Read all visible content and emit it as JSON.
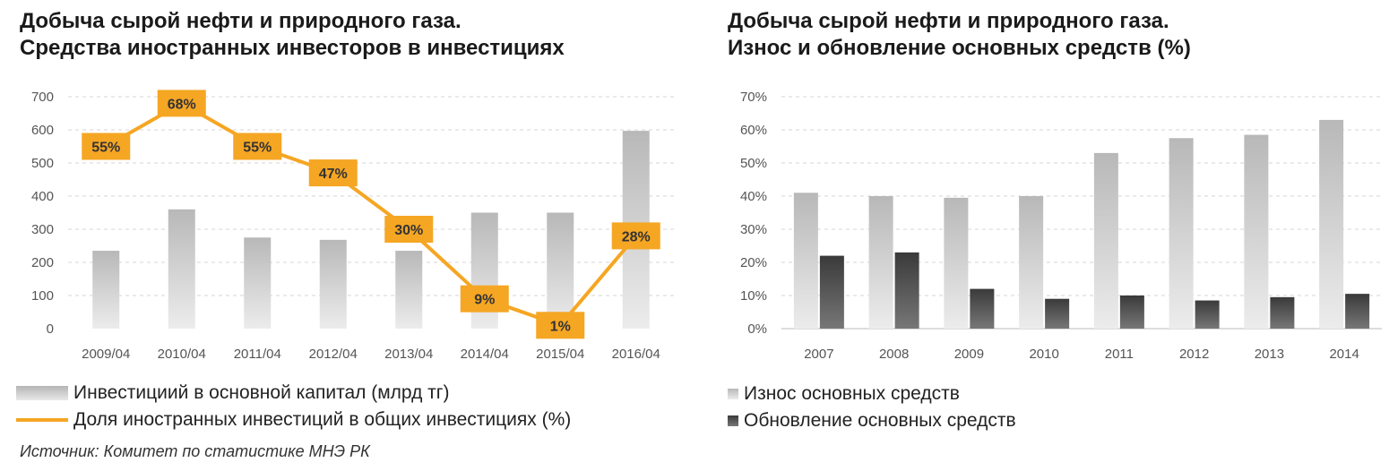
{
  "left_title": [
    "Добыча сырой нефти и природного газа.",
    "Средства иностранных инвесторов в инвестициях"
  ],
  "right_title": [
    "Добыча сырой нефти и природного газа.",
    "Износ и обновление основных средств (%)"
  ],
  "source": "Источник: Комитет по статистике МНЭ РК",
  "colors": {
    "line": "#f5a623",
    "label_box": "#f5a623",
    "bar_light": "#d0d0d0",
    "bar_dark": "#555555"
  },
  "chart_data": [
    {
      "type": "bar",
      "categories": [
        "2009/04",
        "2010/04",
        "2011/04",
        "2012/04",
        "2013/04",
        "2014/04",
        "2015/04",
        "2016/04"
      ],
      "ylim": [
        0,
        700
      ],
      "yticks": [
        "0",
        "100",
        "200",
        "300",
        "400",
        "500",
        "600",
        "700"
      ],
      "series": [
        {
          "name": "Инвестициий в основной капитал (млрд тг)",
          "type": "bar",
          "values": [
            235,
            360,
            275,
            268,
            235,
            350,
            350,
            597
          ]
        },
        {
          "name": "Доля иностранных инвестиций в общих инвестициях (%)",
          "type": "line",
          "values": [
            55,
            68,
            55,
            47,
            30,
            9,
            1,
            28
          ],
          "labels": [
            "55%",
            "68%",
            "55%",
            "47%",
            "30%",
            "9%",
            "1%",
            "28%"
          ]
        }
      ],
      "grid": true,
      "legend": "bottom"
    },
    {
      "type": "bar",
      "categories": [
        "2007",
        "2008",
        "2009",
        "2010",
        "2011",
        "2012",
        "2013",
        "2014"
      ],
      "ylim": [
        0,
        70
      ],
      "yticks": [
        "0%",
        "10%",
        "20%",
        "30%",
        "40%",
        "50%",
        "60%",
        "70%"
      ],
      "series": [
        {
          "name": "Износ основных средств",
          "values": [
            41,
            40,
            39.5,
            40,
            53,
            57.5,
            58.5,
            63
          ]
        },
        {
          "name": "Обновление основных средств",
          "values": [
            22,
            23,
            12,
            9,
            10,
            8.5,
            9.5,
            10.5
          ]
        }
      ],
      "grid": true,
      "legend": "bottom"
    }
  ]
}
